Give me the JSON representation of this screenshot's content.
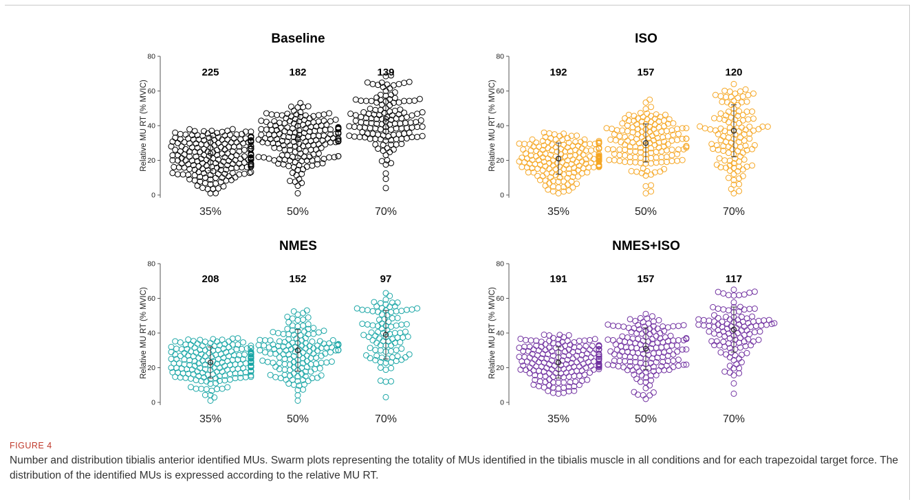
{
  "figure_label": "FIGURE 4",
  "caption": "Number and distribution tibialis anterior identified MUs. Swarm plots representing the totality of MUs identified in the tibialis muscle in all conditions and for each trapezoidal target force. The distribution of the identified MUs is expressed according to the relative MU RT.",
  "chart_data": [
    {
      "type": "scatter",
      "title": "Baseline",
      "ylabel": "Relative MU RT (% MVIC)",
      "ylim": [
        0,
        80
      ],
      "yticks": [
        0,
        20,
        40,
        60,
        80
      ],
      "categories": [
        "35%",
        "50%",
        "70%"
      ],
      "counts": [
        "225",
        "182",
        "139"
      ],
      "color": "#000000",
      "groups": [
        {
          "category": "35%",
          "n": 225,
          "min": 1,
          "max": 38,
          "mean": 24,
          "sd": 10
        },
        {
          "category": "50%",
          "n": 182,
          "min": 1,
          "max": 53,
          "mean": 33,
          "sd": 12
        },
        {
          "category": "70%",
          "n": 139,
          "min": 4,
          "max": 69,
          "mean": 44,
          "sd": 12
        }
      ]
    },
    {
      "type": "scatter",
      "title": "ISO",
      "ylabel": "Relative MU RT (% MVIC)",
      "ylim": [
        0,
        80
      ],
      "yticks": [
        0,
        20,
        40,
        60,
        80
      ],
      "categories": [
        "35%",
        "50%",
        "70%"
      ],
      "counts": [
        "192",
        "157",
        "120"
      ],
      "color": "#f5a623",
      "groups": [
        {
          "category": "35%",
          "n": 192,
          "min": 1,
          "max": 36,
          "mean": 21,
          "sd": 9
        },
        {
          "category": "50%",
          "n": 157,
          "min": 1,
          "max": 55,
          "mean": 30,
          "sd": 11
        },
        {
          "category": "70%",
          "n": 120,
          "min": 1,
          "max": 64,
          "mean": 37,
          "sd": 15
        }
      ]
    },
    {
      "type": "scatter",
      "title": "NMES",
      "ylabel": "Relative MU RT (% MVIC)",
      "ylim": [
        0,
        80
      ],
      "yticks": [
        0,
        20,
        40,
        60,
        80
      ],
      "categories": [
        "35%",
        "50%",
        "70%"
      ],
      "counts": [
        "208",
        "152",
        "97"
      ],
      "color": "#1aa6a6",
      "groups": [
        {
          "category": "35%",
          "n": 208,
          "min": 1,
          "max": 37,
          "mean": 23,
          "sd": 9
        },
        {
          "category": "50%",
          "n": 152,
          "min": 1,
          "max": 53,
          "mean": 30,
          "sd": 12
        },
        {
          "category": "70%",
          "n": 97,
          "min": 3,
          "max": 63,
          "mean": 39,
          "sd": 14
        }
      ]
    },
    {
      "type": "scatter",
      "title": "NMES+ISO",
      "ylabel": "Relative MU RT (% MVIC)",
      "ylim": [
        0,
        80
      ],
      "yticks": [
        0,
        20,
        40,
        60,
        80
      ],
      "categories": [
        "35%",
        "50%",
        "70%"
      ],
      "counts": [
        "191",
        "157",
        "117"
      ],
      "color": "#7030a0",
      "groups": [
        {
          "category": "35%",
          "n": 191,
          "min": 5,
          "max": 39,
          "mean": 23,
          "sd": 9
        },
        {
          "category": "50%",
          "n": 157,
          "min": 2,
          "max": 51,
          "mean": 31,
          "sd": 12
        },
        {
          "category": "70%",
          "n": 117,
          "min": 5,
          "max": 65,
          "mean": 42,
          "sd": 13
        }
      ]
    }
  ]
}
